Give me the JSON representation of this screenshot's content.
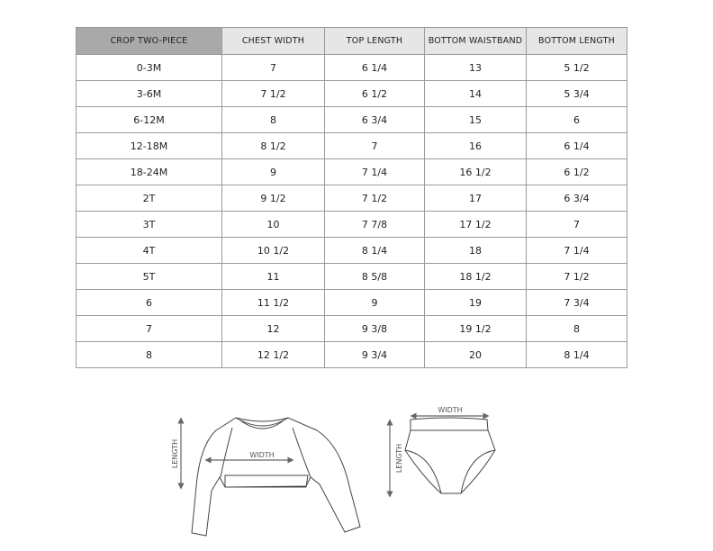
{
  "table": {
    "headers": [
      "CROP TWO-PIECE",
      "CHEST WIDTH",
      "TOP LENGTH",
      "BOTTOM WAISTBAND",
      "BOTTOM LENGTH"
    ],
    "rows": [
      [
        "0-3M",
        "7",
        "6 1/4",
        "13",
        "5 1/2"
      ],
      [
        "3-6M",
        "7 1/2",
        "6 1/2",
        "14",
        "5 3/4"
      ],
      [
        "6-12M",
        "8",
        "6 3/4",
        "15",
        "6"
      ],
      [
        "12-18M",
        "8 1/2",
        "7",
        "16",
        "6 1/4"
      ],
      [
        "18-24M",
        "9",
        "7 1/4",
        "16 1/2",
        "6 1/2"
      ],
      [
        "2T",
        "9 1/2",
        "7 1/2",
        "17",
        "6 3/4"
      ],
      [
        "3T",
        "10",
        "7 7/8",
        "17 1/2",
        "7"
      ],
      [
        "4T",
        "10 1/2",
        "8 1/4",
        "18",
        "7 1/4"
      ],
      [
        "5T",
        "11",
        "8 5/8",
        "18 1/2",
        "7 1/2"
      ],
      [
        "6",
        "11 1/2",
        "9",
        "19",
        "7 3/4"
      ],
      [
        "7",
        "12",
        "9 3/8",
        "19 1/2",
        "8"
      ],
      [
        "8",
        "12 1/2",
        "9 3/4",
        "20",
        "8 1/4"
      ]
    ]
  },
  "diagram": {
    "top": {
      "length_label": "LENGTH",
      "width_label": "WIDTH"
    },
    "bottom": {
      "length_label": "LENGTH",
      "width_label": "WIDTH"
    }
  }
}
